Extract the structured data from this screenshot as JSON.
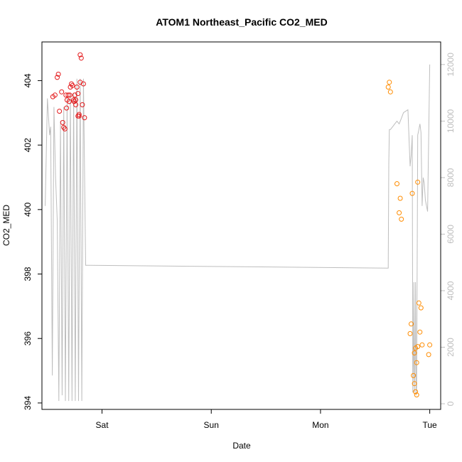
{
  "chart_data": {
    "type": "scatter",
    "title": "ATOM1 Northeast_Pacific CO2_MED",
    "xlabel": "Date",
    "ylabel": "CO2_MED",
    "x_tick_labels": [
      "Sat",
      "Sun",
      "Mon",
      "Tue"
    ],
    "x_tick_values": [
      1,
      2,
      3,
      4
    ],
    "xlim": [
      0.45,
      4.1
    ],
    "ylim": [
      393.8,
      405.2
    ],
    "y_ticks": [
      394,
      396,
      398,
      400,
      402,
      404
    ],
    "y2lim": [
      -200,
      12800
    ],
    "y2_ticks": [
      0,
      2000,
      4000,
      6000,
      8000,
      10000,
      12000
    ],
    "grid": false,
    "colors": {
      "series_red": "#e31a1c",
      "series_orange": "#ff8c00",
      "background_line": "#bebebe"
    },
    "series": [
      {
        "color_key": "series_red",
        "x": [
          0.55,
          0.57,
          0.59,
          0.6,
          0.61,
          0.63,
          0.64,
          0.65,
          0.66,
          0.67,
          0.675,
          0.68,
          0.69,
          0.7,
          0.705,
          0.71,
          0.72,
          0.73,
          0.74,
          0.745,
          0.75,
          0.76,
          0.76,
          0.77,
          0.78,
          0.78,
          0.79,
          0.79,
          0.8,
          0.8,
          0.81,
          0.82,
          0.83,
          0.84
        ],
        "y": [
          403.5,
          403.55,
          404.1,
          404.2,
          403.05,
          403.65,
          402.7,
          402.55,
          402.5,
          403.55,
          403.15,
          403.4,
          403.55,
          403.35,
          403.55,
          403.8,
          403.9,
          403.85,
          403.4,
          403.35,
          403.55,
          403.4,
          403.25,
          403.8,
          403.6,
          402.9,
          402.9,
          402.95,
          404.8,
          403.95,
          404.7,
          403.25,
          403.9,
          402.85
        ]
      },
      {
        "color_key": "series_orange",
        "x": [
          3.62,
          3.63,
          3.64,
          3.7,
          3.72,
          3.73,
          3.74,
          3.82,
          3.83,
          3.84,
          3.85,
          3.86,
          3.86,
          3.87,
          3.87,
          3.88,
          3.88,
          3.89,
          3.89,
          3.9,
          3.91,
          3.92,
          3.93,
          3.99,
          4.0
        ],
        "y": [
          403.8,
          403.95,
          403.65,
          400.8,
          399.9,
          400.35,
          399.7,
          396.15,
          396.45,
          400.5,
          394.85,
          395.55,
          394.6,
          395.7,
          394.35,
          394.25,
          395.25,
          395.75,
          400.85,
          397.1,
          396.2,
          396.95,
          395.8,
          395.5,
          395.8
        ]
      }
    ],
    "background_line": {
      "axis": "right",
      "x": [
        0.48,
        0.5,
        0.52,
        0.53,
        0.545,
        0.56,
        0.575,
        0.59,
        0.605,
        0.62,
        0.635,
        0.65,
        0.665,
        0.68,
        0.695,
        0.71,
        0.725,
        0.74,
        0.755,
        0.77,
        0.785,
        0.8,
        0.815,
        0.83,
        0.85,
        3.62,
        3.625,
        3.63,
        3.64,
        3.66,
        3.68,
        3.7,
        3.72,
        3.74,
        3.76,
        3.8,
        3.82,
        3.83,
        3.84,
        3.845,
        3.85,
        3.855,
        3.86,
        3.865,
        3.87,
        3.875,
        3.88,
        3.89,
        3.9,
        3.91,
        3.92,
        3.93,
        3.94,
        3.95,
        3.96,
        3.98,
        4.0
      ],
      "y": [
        7000,
        10800,
        9500,
        9800,
        1000,
        10500,
        8000,
        6500,
        100,
        10000,
        300,
        10500,
        100,
        10800,
        100,
        11000,
        100,
        11000,
        100,
        11500,
        100,
        11500,
        100,
        11500,
        4900,
        4800,
        8500,
        9700,
        9700,
        9800,
        9900,
        10000,
        9900,
        10100,
        10300,
        10400,
        8400,
        8800,
        9500,
        400,
        1500,
        4300,
        400,
        1500,
        4300,
        300,
        600,
        9500,
        9700,
        9900,
        9600,
        7000,
        8000,
        7800,
        7200,
        6800,
        12000
      ]
    }
  }
}
